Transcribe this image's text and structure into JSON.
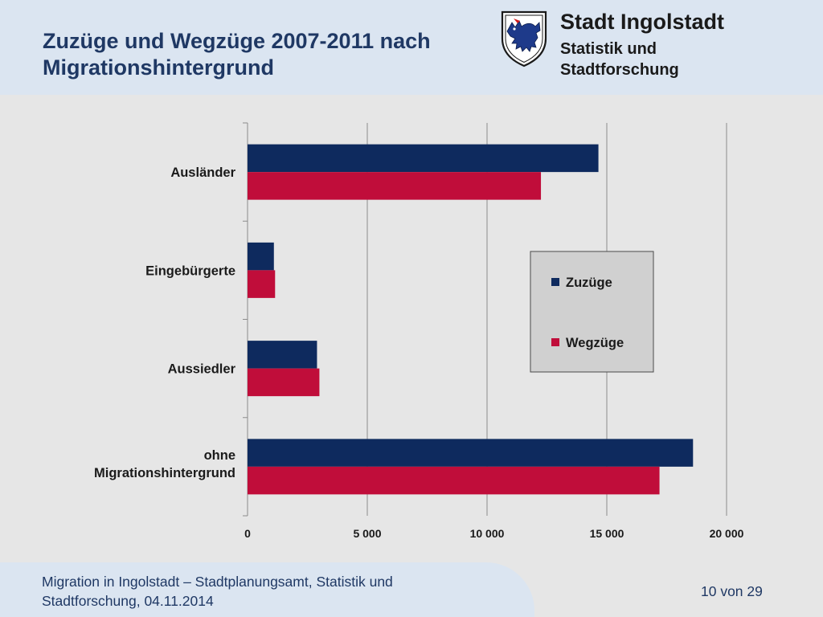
{
  "header": {
    "title_line1": "Zuzüge und Wegzüge 2007-2011 nach",
    "title_line2": "Migrationshintergrund",
    "city": "Stadt Ingolstadt",
    "dept_line1": "Statistik und",
    "dept_line2": "Stadtforschung"
  },
  "footer": {
    "line1": "Migration in Ingolstadt – Stadtplanungsamt, Statistik und",
    "line2": "Stadtforschung, 04.11.2014",
    "page": "10 von 29"
  },
  "colors": {
    "zuzuege": "#0e2a5e",
    "wegzuege": "#c00d3a",
    "legend_bg": "#d0d0d0",
    "grid": "#8c8c8c"
  },
  "chart_data": {
    "type": "bar",
    "orientation": "horizontal",
    "categories": [
      [
        "Ausländer"
      ],
      [
        "Eingebürgerte"
      ],
      [
        "Aussiedler"
      ],
      [
        "ohne",
        "Migrationshintergrund"
      ]
    ],
    "series": [
      {
        "name": "Zuzüge",
        "values": [
          14650,
          1100,
          2900,
          18600
        ]
      },
      {
        "name": "Wegzüge",
        "values": [
          12250,
          1150,
          3000,
          17200
        ]
      }
    ],
    "xlim": [
      0,
      20000
    ],
    "xticks": [
      0,
      5000,
      10000,
      15000,
      20000
    ],
    "xtick_labels": [
      "0",
      "5 000",
      "10 000",
      "15 000",
      "20 000"
    ],
    "grid": "vertical",
    "legend_position": "right-center"
  }
}
